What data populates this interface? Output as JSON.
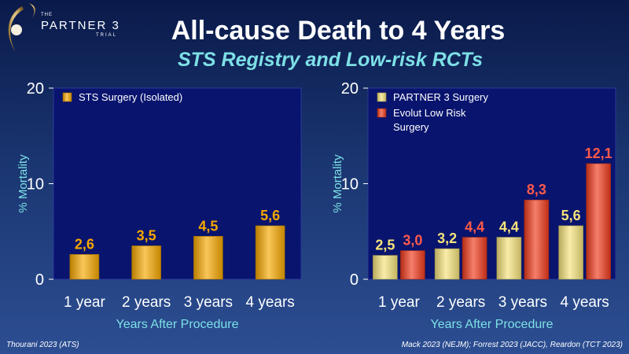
{
  "header": {
    "brand_the": "THE",
    "brand_name": "PARTNER 3",
    "brand_trial": "TRIAL",
    "title": "All-cause Death to 4 Years",
    "subtitle": "STS Registry and Low-risk RCTs"
  },
  "colors": {
    "plot_bg": "#08146e",
    "axis_text": "#ffffff",
    "ylabel": "#7de0e6",
    "xlabel": "#7de0e6"
  },
  "chart_data": [
    {
      "type": "bar",
      "categories": [
        "1 year",
        "2 years",
        "3 years",
        "4 years"
      ],
      "series": [
        {
          "name": "STS Surgery (Isolated)",
          "values": [
            2.6,
            3.5,
            4.5,
            5.6
          ],
          "labels": [
            "2,6",
            "3,5",
            "4,5",
            "5,6"
          ],
          "color": "#f6a800",
          "label_color": "#f6a800"
        }
      ],
      "ylabel": "% Mortality",
      "xlabel": "Years After Procedure",
      "ylim": [
        0,
        20
      ],
      "yticks": [
        "0",
        "10",
        "20"
      ],
      "legend_position": "top-left"
    },
    {
      "type": "bar",
      "categories": [
        "1 year",
        "2 years",
        "3 years",
        "4 years"
      ],
      "series": [
        {
          "name": "PARTNER 3 Surgery",
          "values": [
            2.5,
            3.2,
            4.4,
            5.6
          ],
          "labels": [
            "2,5",
            "3,2",
            "4,4",
            "5,6"
          ],
          "color": "#f5e27a",
          "label_color": "#f5e27a"
        },
        {
          "name": "Evolut Low Risk Surgery",
          "legend_lines": [
            "Evolut Low Risk",
            "Surgery"
          ],
          "values": [
            3.0,
            4.4,
            8.3,
            12.1
          ],
          "labels": [
            "3,0",
            "4,4",
            "8,3",
            "12,1"
          ],
          "color": "#f03a1c",
          "label_color": "#ff5a4a"
        }
      ],
      "ylabel": "% Mortality",
      "xlabel": "Years After Procedure",
      "ylim": [
        0,
        20
      ],
      "yticks": [
        "0",
        "10",
        "20"
      ],
      "legend_position": "top-left"
    }
  ],
  "footer": {
    "left": "Thourani 2023 (ATS)",
    "right": "Mack 2023 (NEJM); Forrest 2023 (JACC), Reardon (TCT 2023)"
  }
}
